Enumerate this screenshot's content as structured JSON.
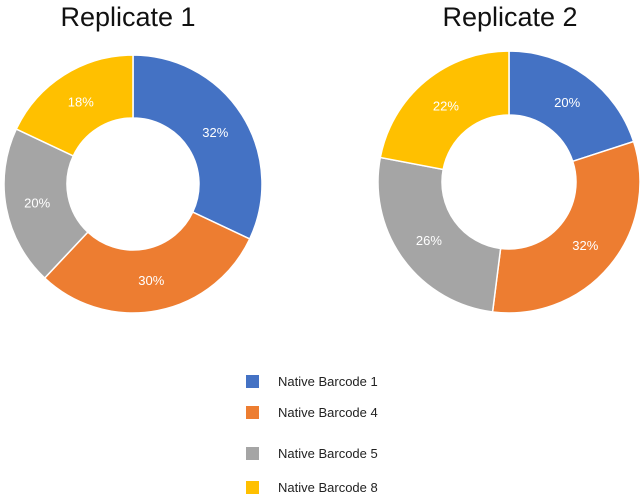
{
  "chart_data": [
    {
      "type": "donut",
      "title": "Replicate 1",
      "categories": [
        "Native Barcode 1",
        "Native Barcode 4",
        "Native Barcode 5",
        "Native Barcode 8"
      ],
      "values": [
        32,
        30,
        20,
        18
      ],
      "labels": [
        "32%",
        "30%",
        "20%",
        "18%"
      ],
      "start": "12 o'clock, clockwise"
    },
    {
      "type": "donut",
      "title": "Replicate 2",
      "categories": [
        "Native Barcode 1",
        "Native Barcode 4",
        "Native Barcode 5",
        "Native Barcode 8"
      ],
      "values": [
        20,
        32,
        26,
        22
      ],
      "labels": [
        "20%",
        "32%",
        "26%",
        "22%"
      ],
      "start": "12 o'clock, clockwise"
    }
  ],
  "legend": {
    "placement": "bottom-center",
    "items": [
      {
        "label": "Native Barcode 1",
        "color": "#4472C4"
      },
      {
        "label": "Native Barcode 4",
        "color": "#ED7D31"
      },
      {
        "label": "Native Barcode 5",
        "color": "#A5A5A5"
      },
      {
        "label": "Native Barcode 8",
        "color": "#FFC000"
      }
    ]
  }
}
